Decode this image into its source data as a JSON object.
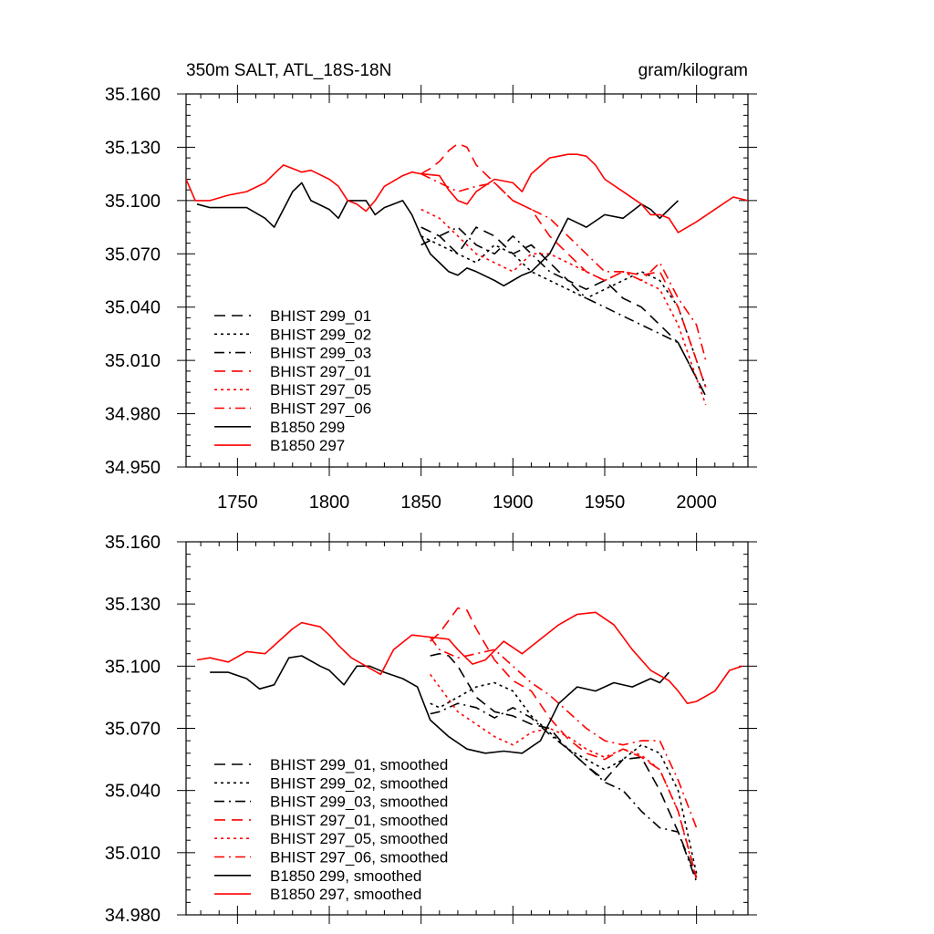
{
  "colors": {
    "black": "#000000",
    "red": "#ff0000",
    "background": "#ffffff"
  },
  "chart_data": [
    {
      "type": "line",
      "title": "350m SALT, ATL_18S-18N",
      "units": "gram/kilogram",
      "xlabel": "",
      "ylabel": "",
      "xlim": [
        1722,
        2028
      ],
      "ylim": [
        34.95,
        35.16
      ],
      "xticks": [
        1750,
        1800,
        1850,
        1900,
        1950,
        2000
      ],
      "xtick_labels": [
        "1750",
        "1800",
        "1850",
        "1900",
        "1950",
        "2000"
      ],
      "yticks": [
        34.95,
        34.98,
        35.01,
        35.04,
        35.07,
        35.1,
        35.13,
        35.16
      ],
      "ytick_labels": [
        "34.950",
        "34.980",
        "35.010",
        "35.040",
        "35.070",
        "35.100",
        "35.130",
        "35.160"
      ],
      "grid": false,
      "legend_position": "bottom-left",
      "series": [
        {
          "name": "BHIST 299_01",
          "color": "#000000",
          "dash": "dashed",
          "x": [
            1850,
            1860,
            1870,
            1880,
            1890,
            1900,
            1910,
            1920,
            1930,
            1940,
            1950,
            1960,
            1970,
            1980,
            1990,
            2000,
            2005
          ],
          "y": [
            35.085,
            35.08,
            35.07,
            35.085,
            35.08,
            35.07,
            35.075,
            35.065,
            35.055,
            35.05,
            35.055,
            35.045,
            35.04,
            35.03,
            35.02,
            35.0,
            34.99
          ]
        },
        {
          "name": "BHIST 299_02",
          "color": "#000000",
          "dash": "dotted",
          "x": [
            1850,
            1860,
            1870,
            1880,
            1890,
            1900,
            1910,
            1920,
            1930,
            1940,
            1950,
            1960,
            1970,
            1980,
            1990,
            2000,
            2005
          ],
          "y": [
            35.08,
            35.075,
            35.07,
            35.065,
            35.075,
            35.07,
            35.06,
            35.055,
            35.05,
            35.045,
            35.05,
            35.055,
            35.06,
            35.055,
            35.04,
            35.01,
            34.995
          ]
        },
        {
          "name": "BHIST 299_03",
          "color": "#000000",
          "dash": "dashdot",
          "x": [
            1850,
            1860,
            1870,
            1880,
            1890,
            1900,
            1910,
            1920,
            1930,
            1940,
            1950,
            1960,
            1970,
            1980,
            1990,
            2000,
            2005
          ],
          "y": [
            35.075,
            35.08,
            35.085,
            35.075,
            35.07,
            35.08,
            35.07,
            35.06,
            35.055,
            35.045,
            35.04,
            35.035,
            35.03,
            35.025,
            35.02,
            35.0,
            34.99
          ]
        },
        {
          "name": "BHIST 297_01",
          "color": "#ff0000",
          "dash": "dashed",
          "x": [
            1850,
            1855,
            1860,
            1865,
            1870,
            1875,
            1880,
            1890,
            1900,
            1910,
            1920,
            1930,
            1940,
            1950,
            1960,
            1970,
            1980,
            1990,
            2000,
            2005
          ],
          "y": [
            35.115,
            35.118,
            35.122,
            35.128,
            35.132,
            35.13,
            35.12,
            35.11,
            35.1,
            35.095,
            35.08,
            35.07,
            35.06,
            35.055,
            35.06,
            35.058,
            35.06,
            35.04,
            35.01,
            34.995
          ]
        },
        {
          "name": "BHIST 297_05",
          "color": "#ff0000",
          "dash": "dotted",
          "x": [
            1850,
            1860,
            1870,
            1880,
            1890,
            1900,
            1910,
            1920,
            1930,
            1940,
            1950,
            1960,
            1970,
            1980,
            1990,
            2000,
            2005
          ],
          "y": [
            35.095,
            35.09,
            35.08,
            35.07,
            35.065,
            35.06,
            35.07,
            35.07,
            35.065,
            35.06,
            35.055,
            35.06,
            35.055,
            35.05,
            35.03,
            35.0,
            34.985
          ]
        },
        {
          "name": "BHIST 297_06",
          "color": "#ff0000",
          "dash": "dashdot",
          "x": [
            1850,
            1860,
            1870,
            1880,
            1890,
            1900,
            1910,
            1920,
            1930,
            1940,
            1950,
            1960,
            1970,
            1980,
            1990,
            2000,
            2005
          ],
          "y": [
            35.115,
            35.11,
            35.105,
            35.108,
            35.11,
            35.1,
            35.095,
            35.09,
            35.08,
            35.07,
            35.06,
            35.06,
            35.055,
            35.065,
            35.045,
            35.03,
            35.01
          ]
        },
        {
          "name": "B1850 299",
          "color": "#000000",
          "dash": "solid",
          "x": [
            1728,
            1735,
            1745,
            1755,
            1765,
            1770,
            1780,
            1785,
            1790,
            1800,
            1805,
            1810,
            1820,
            1825,
            1830,
            1840,
            1845,
            1850,
            1855,
            1860,
            1865,
            1870,
            1875,
            1880,
            1890,
            1895,
            1900,
            1905,
            1910,
            1920,
            1930,
            1940,
            1950,
            1960,
            1970,
            1975,
            1980,
            1985,
            1990
          ],
          "y": [
            35.098,
            35.096,
            35.096,
            35.096,
            35.09,
            35.085,
            35.105,
            35.11,
            35.1,
            35.095,
            35.09,
            35.1,
            35.1,
            35.092,
            35.096,
            35.1,
            35.092,
            35.08,
            35.07,
            35.065,
            35.06,
            35.058,
            35.062,
            35.06,
            35.055,
            35.052,
            35.055,
            35.058,
            35.06,
            35.07,
            35.09,
            35.085,
            35.092,
            35.09,
            35.098,
            35.095,
            35.09,
            35.095,
            35.1
          ]
        },
        {
          "name": "B1850 297",
          "color": "#ff0000",
          "dash": "solid",
          "x": [
            1722,
            1727,
            1735,
            1745,
            1755,
            1765,
            1770,
            1775,
            1780,
            1785,
            1790,
            1800,
            1805,
            1810,
            1815,
            1820,
            1825,
            1830,
            1840,
            1845,
            1850,
            1860,
            1865,
            1870,
            1875,
            1880,
            1890,
            1900,
            1905,
            1910,
            1920,
            1925,
            1930,
            1935,
            1940,
            1945,
            1950,
            1960,
            1970,
            1975,
            1980,
            1985,
            1990,
            2000,
            2010,
            2020,
            2028
          ],
          "y": [
            35.112,
            35.1,
            35.1,
            35.103,
            35.105,
            35.11,
            35.115,
            35.12,
            35.118,
            35.116,
            35.117,
            35.112,
            35.108,
            35.1,
            35.098,
            35.094,
            35.1,
            35.108,
            35.114,
            35.116,
            35.115,
            35.114,
            35.106,
            35.1,
            35.098,
            35.105,
            35.112,
            35.11,
            35.105,
            35.115,
            35.124,
            35.125,
            35.126,
            35.126,
            35.125,
            35.12,
            35.112,
            35.105,
            35.098,
            35.092,
            35.092,
            35.09,
            35.082,
            35.088,
            35.095,
            35.102,
            35.1
          ]
        }
      ]
    },
    {
      "type": "line",
      "title": "",
      "xlabel": "",
      "ylabel": "",
      "xlim": [
        1722,
        2028
      ],
      "ylim": [
        34.98,
        35.16
      ],
      "xticks": [
        1750,
        1800,
        1850,
        1900,
        1950,
        2000
      ],
      "xtick_labels": [],
      "yticks": [
        34.98,
        35.01,
        35.04,
        35.07,
        35.1,
        35.13,
        35.16
      ],
      "ytick_labels": [
        "34.980",
        "35.010",
        "35.040",
        "35.070",
        "35.100",
        "35.130",
        "35.160"
      ],
      "grid": false,
      "legend_position": "bottom-left",
      "series": [
        {
          "name": "BHIST 299_01, smoothed",
          "color": "#000000",
          "dash": "dashed",
          "x": [
            1855,
            1860,
            1865,
            1870,
            1880,
            1890,
            1900,
            1910,
            1920,
            1930,
            1940,
            1950,
            1955,
            1960,
            1970,
            1980,
            1990,
            2000
          ],
          "y": [
            35.105,
            35.106,
            35.105,
            35.1,
            35.085,
            35.078,
            35.076,
            35.072,
            35.07,
            35.06,
            35.052,
            35.045,
            35.05,
            35.055,
            35.056,
            35.04,
            35.02,
            34.998
          ]
        },
        {
          "name": "BHIST 299_02, smoothed",
          "color": "#000000",
          "dash": "dotted",
          "x": [
            1855,
            1860,
            1870,
            1880,
            1890,
            1900,
            1910,
            1920,
            1930,
            1940,
            1950,
            1960,
            1970,
            1980,
            1990,
            2000
          ],
          "y": [
            35.082,
            35.08,
            35.085,
            35.09,
            35.092,
            35.088,
            35.076,
            35.068,
            35.06,
            35.055,
            35.05,
            35.055,
            35.062,
            35.058,
            35.04,
            35.0
          ]
        },
        {
          "name": "BHIST 299_03, smoothed",
          "color": "#000000",
          "dash": "dashdot",
          "x": [
            1855,
            1860,
            1870,
            1880,
            1890,
            1900,
            1910,
            1920,
            1930,
            1940,
            1950,
            1960,
            1970,
            1980,
            1990,
            2000
          ],
          "y": [
            35.077,
            35.078,
            35.082,
            35.08,
            35.075,
            35.08,
            35.075,
            35.067,
            35.06,
            35.052,
            35.044,
            35.04,
            35.03,
            35.022,
            35.02,
            34.996
          ]
        },
        {
          "name": "BHIST 297_01, smoothed",
          "color": "#ff0000",
          "dash": "dashed",
          "x": [
            1855,
            1860,
            1865,
            1870,
            1875,
            1880,
            1890,
            1900,
            1910,
            1920,
            1930,
            1940,
            1950,
            1960,
            1970,
            1980,
            1990,
            2000
          ],
          "y": [
            35.112,
            35.116,
            35.122,
            35.128,
            35.127,
            35.118,
            35.103,
            35.093,
            35.088,
            35.075,
            35.065,
            35.058,
            35.055,
            35.06,
            35.056,
            35.05,
            35.03,
            34.998
          ]
        },
        {
          "name": "BHIST 297_05, smoothed",
          "color": "#ff0000",
          "dash": "dotted",
          "x": [
            1855,
            1860,
            1870,
            1880,
            1890,
            1900,
            1910,
            1920,
            1930,
            1940,
            1950,
            1960,
            1970,
            1980,
            1990,
            2000
          ],
          "y": [
            35.096,
            35.09,
            35.078,
            35.072,
            35.066,
            35.062,
            35.068,
            35.07,
            35.066,
            35.06,
            35.056,
            35.06,
            35.057,
            35.05,
            35.03,
            34.997
          ]
        },
        {
          "name": "BHIST 297_06, smoothed",
          "color": "#ff0000",
          "dash": "dashdot",
          "x": [
            1855,
            1860,
            1870,
            1880,
            1890,
            1900,
            1910,
            1920,
            1930,
            1940,
            1950,
            1960,
            1970,
            1980,
            1990,
            2000
          ],
          "y": [
            35.114,
            35.108,
            35.104,
            35.106,
            35.108,
            35.1,
            35.092,
            35.086,
            35.078,
            35.07,
            35.064,
            35.062,
            35.064,
            35.064,
            35.045,
            35.022
          ]
        },
        {
          "name": "B1850 299, smoothed",
          "color": "#000000",
          "dash": "solid",
          "x": [
            1735,
            1745,
            1755,
            1762,
            1770,
            1778,
            1785,
            1795,
            1800,
            1808,
            1815,
            1822,
            1830,
            1840,
            1848,
            1855,
            1865,
            1875,
            1885,
            1895,
            1905,
            1915,
            1925,
            1935,
            1945,
            1955,
            1965,
            1975,
            1980,
            1985
          ],
          "y": [
            35.097,
            35.097,
            35.094,
            35.089,
            35.091,
            35.104,
            35.105,
            35.1,
            35.098,
            35.091,
            35.1,
            35.1,
            35.097,
            35.094,
            35.09,
            35.074,
            35.066,
            35.06,
            35.058,
            35.059,
            35.058,
            35.064,
            35.082,
            35.09,
            35.088,
            35.092,
            35.09,
            35.094,
            35.092,
            35.097
          ]
        },
        {
          "name": "B1850 297, smoothed",
          "color": "#ff0000",
          "dash": "solid",
          "x": [
            1728,
            1735,
            1745,
            1755,
            1765,
            1770,
            1780,
            1785,
            1795,
            1800,
            1805,
            1812,
            1820,
            1828,
            1835,
            1845,
            1855,
            1865,
            1870,
            1878,
            1885,
            1895,
            1905,
            1915,
            1925,
            1935,
            1945,
            1955,
            1965,
            1975,
            1985,
            1990,
            1995,
            2000,
            2010,
            2018,
            2025
          ],
          "y": [
            35.103,
            35.104,
            35.102,
            35.107,
            35.106,
            35.11,
            35.118,
            35.121,
            35.119,
            35.115,
            35.11,
            35.104,
            35.1,
            35.096,
            35.108,
            35.115,
            35.114,
            35.113,
            35.108,
            35.101,
            35.103,
            35.112,
            35.106,
            35.113,
            35.12,
            35.125,
            35.126,
            35.12,
            35.108,
            35.098,
            35.093,
            35.088,
            35.082,
            35.083,
            35.088,
            35.098,
            35.1
          ]
        }
      ]
    }
  ]
}
